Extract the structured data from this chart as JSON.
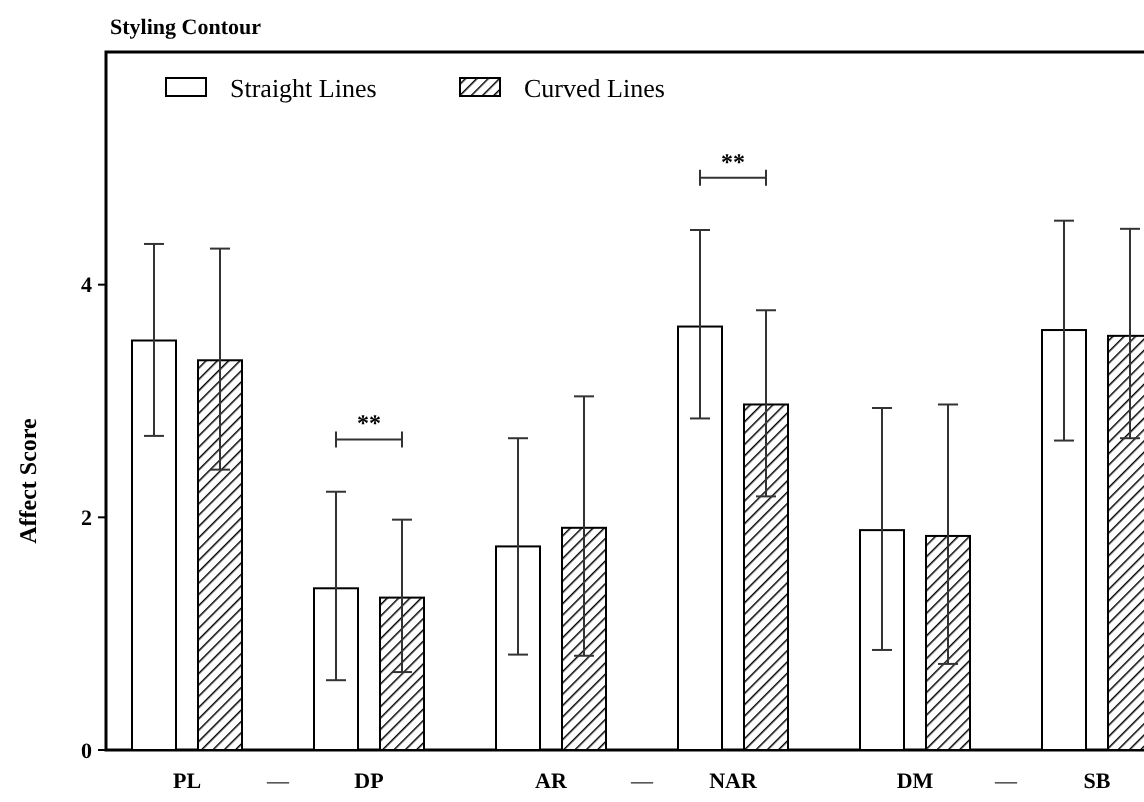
{
  "chart_data": {
    "type": "bar",
    "title": "Styling Contour",
    "ylabel": "Affect Score",
    "categories": [
      "PL",
      "DP",
      "AR",
      "NAR",
      "DM",
      "SB"
    ],
    "series": [
      {
        "name": "Straight Lines",
        "color": "#ffffff",
        "values": [
          3.52,
          1.39,
          1.75,
          3.64,
          1.89,
          3.61
        ],
        "errors": [
          [
            2.7,
            4.35
          ],
          [
            0.6,
            2.22
          ],
          [
            0.82,
            2.68
          ],
          [
            2.85,
            4.47
          ],
          [
            0.86,
            2.94
          ],
          [
            2.66,
            4.55
          ]
        ]
      },
      {
        "name": "Curved Lines",
        "color": "#000000",
        "values": [
          3.35,
          1.31,
          1.91,
          2.97,
          1.84,
          3.56
        ],
        "errors": [
          [
            2.41,
            4.31
          ],
          [
            0.67,
            1.98
          ],
          [
            0.81,
            3.04
          ],
          [
            2.18,
            3.78
          ],
          [
            0.74,
            2.97
          ],
          [
            2.68,
            4.48
          ]
        ]
      }
    ],
    "ylim": [
      0,
      6
    ],
    "yticks": [
      0,
      2,
      4
    ],
    "grid": false,
    "legend": "top left",
    "annotations": [
      "**",
      "**",
      "—",
      "—",
      "—"
    ]
  }
}
